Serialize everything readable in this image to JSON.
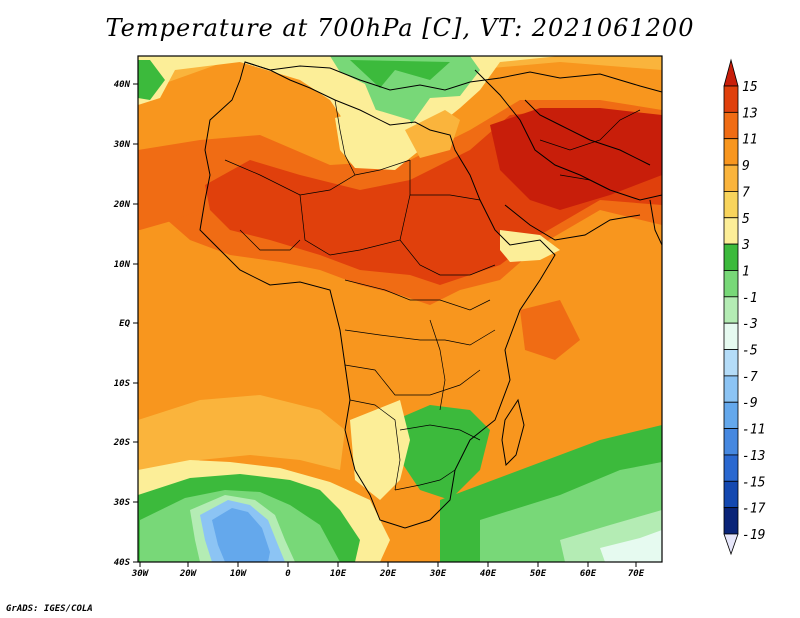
{
  "title": "Temperature at 700hPa [C], VT: 2021061200",
  "credit": "GrADS: IGES/COLA",
  "map": {
    "lat_ticks": [
      "40N",
      "30N",
      "20N",
      "10N",
      "EQ",
      "10S",
      "20S",
      "30S",
      "40S"
    ],
    "lon_ticks": [
      "30W",
      "20W",
      "10W",
      "0",
      "10E",
      "20E",
      "30E",
      "40E",
      "50E",
      "60E",
      "70E"
    ],
    "variable": "Temperature",
    "level": "700hPa",
    "units": "C",
    "valid_time": "2021061200"
  },
  "colorbar": {
    "labels": [
      "15",
      "13",
      "11",
      "9",
      "7",
      "5",
      "3",
      "1",
      "-1",
      "-3",
      "-5",
      "-7",
      "-9",
      "-11",
      "-13",
      "-15",
      "-17",
      "-19"
    ],
    "colors": [
      "#c81e0a",
      "#e0400c",
      "#f06c14",
      "#f8961e",
      "#fab43c",
      "#f8d45c",
      "#fcee98",
      "#3cba3c",
      "#78d878",
      "#b4ecb4",
      "#e6faf0",
      "#b4dcf8",
      "#8cc4f4",
      "#64a8ec",
      "#4688e0",
      "#2a68d0",
      "#1448b0",
      "#0a2478",
      "#e6e6fa"
    ]
  }
}
